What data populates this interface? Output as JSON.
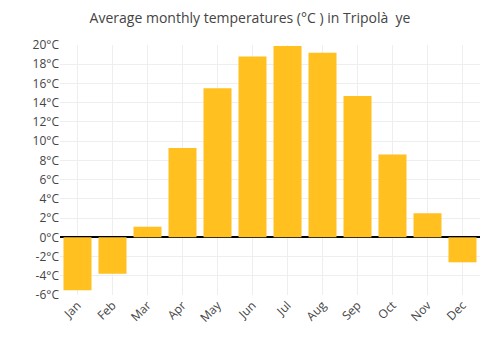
{
  "chart_data": {
    "type": "bar",
    "title": "Average monthly temperatures (°C ) in Tripolà  ye",
    "categories": [
      "Jan",
      "Feb",
      "Mar",
      "Apr",
      "May",
      "Jun",
      "Jul",
      "Aug",
      "Sep",
      "Oct",
      "Nov",
      "Dec"
    ],
    "values": [
      -5.5,
      -3.8,
      1.1,
      9.3,
      15.5,
      18.8,
      19.9,
      19.2,
      14.7,
      8.6,
      2.5,
      -2.6
    ],
    "color": "#FFC020",
    "ylim": [
      -6,
      20
    ],
    "yticks": [
      {
        "value": -6,
        "label": "-6°C"
      },
      {
        "value": -4,
        "label": "-4°C"
      },
      {
        "value": -2,
        "label": "-2°C"
      },
      {
        "value": 0,
        "label": "0°C"
      },
      {
        "value": 2,
        "label": "2°C"
      },
      {
        "value": 4,
        "label": "4°C"
      },
      {
        "value": 6,
        "label": "6°C"
      },
      {
        "value": 8,
        "label": "8°C"
      },
      {
        "value": 10,
        "label": "10°C"
      },
      {
        "value": 12,
        "label": "12°C"
      },
      {
        "value": 14,
        "label": "14°C"
      },
      {
        "value": 16,
        "label": "16°C"
      },
      {
        "value": 18,
        "label": "18°C"
      },
      {
        "value": 20,
        "label": "20°C"
      }
    ],
    "grid": true
  }
}
